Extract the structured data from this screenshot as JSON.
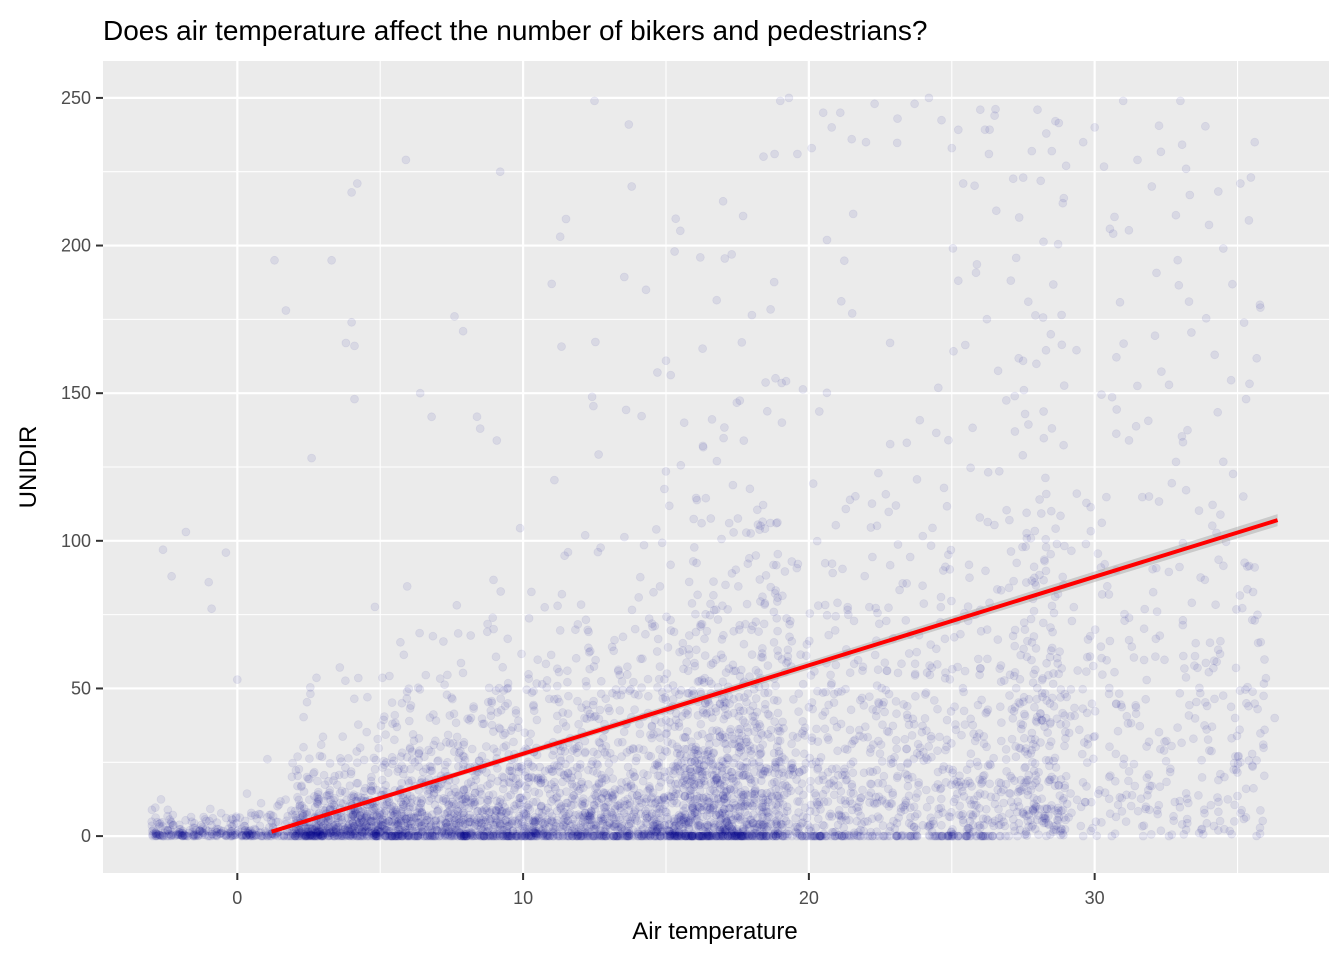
{
  "chart_data": {
    "type": "scatter",
    "title": "Does air temperature affect the number of bikers and pedestrians?",
    "xlabel": "Air temperature",
    "ylabel": "UNIDIR",
    "xlim": [
      -4.7,
      38.2
    ],
    "ylim": [
      -12.5,
      262.5
    ],
    "x_ticks": [
      0,
      10,
      20,
      30
    ],
    "y_ticks": [
      0,
      50,
      100,
      150,
      200,
      250
    ],
    "grid": true,
    "point_color": "#00008b",
    "point_opacity": 0.08,
    "panel_background": "#ebebeb",
    "grid_color": "#ffffff",
    "fit_line": {
      "type": "linear",
      "color": "#ff0000",
      "x": [
        1.2,
        36.4
      ],
      "y": [
        1.5,
        107.0
      ]
    },
    "series": [
      {
        "points": [
          [
            -2.6,
            97
          ],
          [
            -2.3,
            88
          ],
          [
            -1.8,
            103
          ],
          [
            -1.0,
            86
          ],
          [
            -0.9,
            77
          ],
          [
            -0.4,
            96
          ],
          [
            0.0,
            53
          ],
          [
            1.3,
            195
          ],
          [
            1.7,
            178
          ],
          [
            2.6,
            128
          ],
          [
            3.3,
            195
          ],
          [
            3.8,
            167
          ],
          [
            4.0,
            218
          ],
          [
            4.2,
            221
          ],
          [
            4.0,
            174
          ],
          [
            4.1,
            166
          ],
          [
            4.1,
            148
          ],
          [
            5.9,
            229
          ],
          [
            6.4,
            150
          ],
          [
            6.8,
            142
          ],
          [
            7.6,
            176
          ],
          [
            7.9,
            171
          ],
          [
            8.5,
            138
          ],
          [
            9.2,
            225
          ],
          [
            11.0,
            187
          ],
          [
            11.3,
            203
          ],
          [
            11.5,
            209
          ],
          [
            12.5,
            249
          ],
          [
            13.7,
            241
          ],
          [
            13.8,
            220
          ],
          [
            14.3,
            185
          ],
          [
            14.7,
            157
          ],
          [
            15.0,
            161
          ],
          [
            15.3,
            198
          ],
          [
            15.5,
            205
          ],
          [
            16.2,
            196
          ],
          [
            17.0,
            215
          ],
          [
            17.3,
            197
          ],
          [
            17.7,
            210
          ],
          [
            18.8,
            231
          ],
          [
            19.0,
            249
          ],
          [
            19.3,
            250
          ],
          [
            19.6,
            231
          ],
          [
            20.1,
            233
          ],
          [
            20.5,
            245
          ],
          [
            20.8,
            240
          ],
          [
            21.1,
            245
          ],
          [
            21.5,
            236
          ],
          [
            22.0,
            235
          ],
          [
            22.3,
            248
          ],
          [
            23.1,
            243
          ],
          [
            23.7,
            248
          ],
          [
            24.2,
            250
          ],
          [
            25.0,
            233
          ],
          [
            25.4,
            221
          ],
          [
            26.0,
            246
          ],
          [
            26.3,
            231
          ],
          [
            26.5,
            244
          ],
          [
            27.5,
            223
          ],
          [
            27.8,
            232
          ],
          [
            28.0,
            246
          ],
          [
            28.5,
            232
          ],
          [
            29.0,
            227
          ],
          [
            29.6,
            235
          ],
          [
            30.0,
            240
          ],
          [
            31.0,
            249
          ],
          [
            31.5,
            229
          ],
          [
            32.0,
            220
          ],
          [
            33.0,
            249
          ],
          [
            33.2,
            226
          ],
          [
            34.0,
            207
          ],
          [
            34.5,
            199
          ],
          [
            35.1,
            221
          ],
          [
            35.3,
            148
          ],
          [
            35.6,
            235
          ],
          [
            35.8,
            179
          ],
          [
            34.2,
            163
          ],
          [
            33.3,
            181
          ],
          [
            31.9,
            115
          ],
          [
            31.2,
            134
          ],
          [
            35.2,
            115
          ],
          [
            35.6,
            91
          ],
          [
            35.6,
            73
          ],
          [
            35.7,
            43
          ],
          [
            35.1,
            25
          ],
          [
            36.3,
            40
          ],
          [
            35.9,
            31
          ],
          [
            34.4,
            66
          ],
          [
            32.0,
            17
          ],
          [
            32.6,
            0
          ],
          [
            31.7,
            0
          ],
          [
            30.6,
            0
          ],
          [
            29.6,
            0
          ],
          [
            27.3,
            0
          ],
          [
            34.4,
            21
          ],
          [
            33.6,
            57
          ],
          [
            33.4,
            79
          ],
          [
            33.1,
            61
          ]
        ]
      }
    ]
  }
}
